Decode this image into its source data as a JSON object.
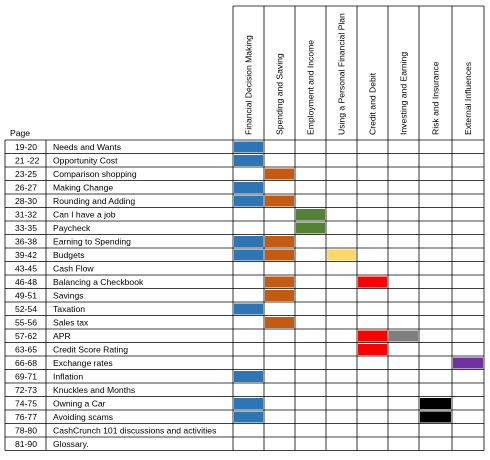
{
  "page_header": "Page",
  "categories": [
    "Financial Decision Making",
    "Spending and Saving",
    "Employment and Income",
    "Using a Personal Financial Plan",
    "Credit and Debit",
    "Investing and Earning",
    "Risk and Insurance",
    "External Influences"
  ],
  "category_colors": [
    "#2e75b6",
    "#c55a11",
    "#548235",
    "#ffd966",
    "#ff0000",
    "#7f7f7f",
    "#000000",
    "#7030a0"
  ],
  "rows": [
    {
      "page": "19-20",
      "topic": "Needs and Wants",
      "marks": [
        1,
        0,
        0,
        0,
        0,
        0,
        0,
        0
      ]
    },
    {
      "page": "21 -22",
      "topic": "Opportunity Cost",
      "marks": [
        1,
        0,
        0,
        0,
        0,
        0,
        0,
        0
      ]
    },
    {
      "page": "23-25",
      "topic": "Comparison shopping",
      "marks": [
        0,
        1,
        0,
        0,
        0,
        0,
        0,
        0
      ]
    },
    {
      "page": "26-27",
      "topic": "Making Change",
      "marks": [
        1,
        0,
        0,
        0,
        0,
        0,
        0,
        0
      ]
    },
    {
      "page": "28-30",
      "topic": "Rounding and Adding",
      "marks": [
        1,
        1,
        0,
        0,
        0,
        0,
        0,
        0
      ]
    },
    {
      "page": "31-32",
      "topic": "Can I have a job",
      "marks": [
        0,
        0,
        1,
        0,
        0,
        0,
        0,
        0
      ]
    },
    {
      "page": "33-35",
      "topic": "Paycheck",
      "marks": [
        0,
        0,
        1,
        0,
        0,
        0,
        0,
        0
      ]
    },
    {
      "page": "36-38",
      "topic": "Earning to Spending",
      "marks": [
        1,
        1,
        0,
        0,
        0,
        0,
        0,
        0
      ]
    },
    {
      "page": "39-42",
      "topic": "Budgets",
      "marks": [
        1,
        1,
        0,
        1,
        0,
        0,
        0,
        0
      ]
    },
    {
      "page": "43-45",
      "topic": "Cash Flow",
      "marks": [
        0,
        0,
        0,
        0,
        0,
        0,
        0,
        0
      ]
    },
    {
      "page": "46-48",
      "topic": "Balancing a Checkbook",
      "marks": [
        0,
        1,
        0,
        0,
        1,
        0,
        0,
        0
      ]
    },
    {
      "page": "49-51",
      "topic": "Savings",
      "marks": [
        0,
        1,
        0,
        0,
        0,
        0,
        0,
        0
      ]
    },
    {
      "page": "52-54",
      "topic": "Taxation",
      "marks": [
        1,
        0,
        0,
        0,
        0,
        0,
        0,
        0
      ]
    },
    {
      "page": "55-56",
      "topic": "Sales tax",
      "marks": [
        0,
        1,
        0,
        0,
        0,
        0,
        0,
        0
      ]
    },
    {
      "page": "57-62",
      "topic": "APR",
      "marks": [
        0,
        0,
        0,
        0,
        1,
        1,
        0,
        0
      ]
    },
    {
      "page": "63-65",
      "topic": "Credit Score Rating",
      "marks": [
        0,
        0,
        0,
        0,
        1,
        0,
        0,
        0
      ]
    },
    {
      "page": "66-68",
      "topic": "Exchange rates",
      "marks": [
        0,
        0,
        0,
        0,
        0,
        0,
        0,
        1
      ]
    },
    {
      "page": "69-71",
      "topic": "Inflation",
      "marks": [
        1,
        0,
        0,
        0,
        0,
        0,
        0,
        0
      ]
    },
    {
      "page": "72-73",
      "topic": "Knuckles and Months",
      "marks": [
        0,
        0,
        0,
        0,
        0,
        0,
        0,
        0
      ]
    },
    {
      "page": "74-75",
      "topic": "Owning a Car",
      "marks": [
        1,
        0,
        0,
        0,
        0,
        0,
        1,
        0
      ]
    },
    {
      "page": "76-77",
      "topic": "Avoiding scams",
      "marks": [
        1,
        0,
        0,
        0,
        0,
        0,
        1,
        0
      ]
    },
    {
      "page": "78-80",
      "topic": "CashCrunch 101 discussions and activities",
      "marks": [
        0,
        0,
        0,
        0,
        0,
        0,
        0,
        0
      ]
    },
    {
      "page": "81-90",
      "topic": "Glossary.",
      "marks": [
        0,
        0,
        0,
        0,
        0,
        0,
        0,
        0
      ]
    }
  ]
}
